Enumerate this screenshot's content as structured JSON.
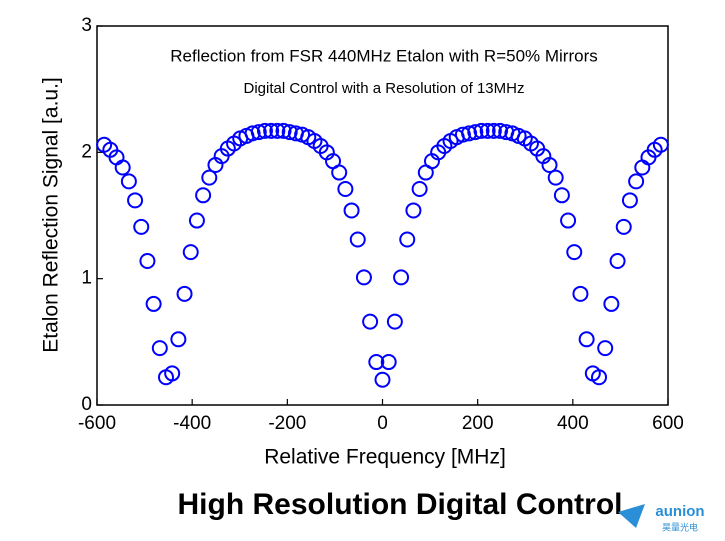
{
  "chart_data": {
    "type": "scatter",
    "annotations": [
      "Reflection from FSR 440MHz Etalon with  R=50% Mirrors",
      "Digital Control with a Resolution of 13MHz"
    ],
    "x_label": "Relative Frequency [MHz]",
    "y_label": "Etalon Reflection Signal [a.u.]",
    "caption": "High Resolution  Digital Control",
    "logo": [
      "aunion",
      "昊量光电"
    ],
    "xlim": [
      -600,
      600
    ],
    "xticks": [
      -600,
      -400,
      -200,
      0,
      200,
      400,
      600
    ],
    "ylim": [
      0,
      3
    ],
    "yticks": [
      0,
      1,
      2,
      3
    ],
    "series": [
      {
        "color": "#0000ff",
        "x": [
          -585,
          -572,
          -559,
          -546,
          -533,
          -520,
          -507,
          -494,
          -481,
          -468,
          -455,
          -442,
          -429,
          -416,
          -403,
          -390,
          -377,
          -364,
          -351,
          -338,
          -325,
          -312,
          -299,
          -286,
          -273,
          -260,
          -247,
          -234,
          -221,
          -208,
          -195,
          -182,
          -169,
          -156,
          -143,
          -130,
          -117,
          -104,
          -91,
          -78,
          -65,
          -52,
          -39,
          -26,
          -13,
          0,
          13,
          26,
          39,
          52,
          65,
          78,
          91,
          104,
          117,
          130,
          143,
          156,
          169,
          182,
          195,
          208,
          221,
          234,
          247,
          260,
          273,
          286,
          299,
          312,
          325,
          338,
          351,
          364,
          377,
          390,
          403,
          416,
          429,
          442,
          455,
          468,
          481,
          494,
          507,
          520,
          533,
          546,
          559,
          572,
          585
        ],
        "values": [
          2.06,
          2.02,
          1.96,
          1.88,
          1.77,
          1.62,
          1.41,
          1.14,
          0.8,
          0.45,
          0.22,
          0.25,
          0.52,
          0.88,
          1.21,
          1.46,
          1.66,
          1.8,
          1.9,
          1.97,
          2.03,
          2.07,
          2.11,
          2.13,
          2.15,
          2.16,
          2.17,
          2.17,
          2.17,
          2.17,
          2.16,
          2.15,
          2.14,
          2.12,
          2.09,
          2.05,
          2.0,
          1.93,
          1.84,
          1.71,
          1.54,
          1.31,
          1.01,
          0.66,
          0.34,
          0.2,
          0.34,
          0.66,
          1.01,
          1.31,
          1.54,
          1.71,
          1.84,
          1.93,
          2.0,
          2.05,
          2.09,
          2.12,
          2.14,
          2.15,
          2.16,
          2.17,
          2.17,
          2.17,
          2.17,
          2.16,
          2.15,
          2.13,
          2.11,
          2.07,
          2.03,
          1.97,
          1.9,
          1.8,
          1.66,
          1.46,
          1.21,
          0.88,
          0.52,
          0.25,
          0.22,
          0.45,
          0.8,
          1.14,
          1.41,
          1.62,
          1.77,
          1.88,
          1.96,
          2.02,
          2.06
        ]
      }
    ]
  }
}
